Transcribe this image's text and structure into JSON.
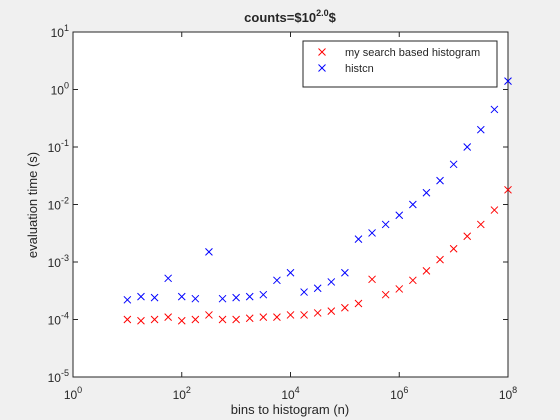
{
  "chart_data": {
    "type": "scatter",
    "title": "counts=$10",
    "title_superscript": "2.0",
    "title_suffix": "$",
    "xlabel": "bins to histogram (n)",
    "ylabel": "evaluation time (s)",
    "xscale": "log",
    "yscale": "log",
    "legend": "upper right",
    "xlim": [
      1,
      100000000
    ],
    "ylim": [
      1e-05,
      10
    ],
    "xticks": [
      {
        "value": 1,
        "label": "10",
        "exponent": "0"
      },
      {
        "value": 100,
        "label": "10",
        "exponent": "2"
      },
      {
        "value": 10000,
        "label": "10",
        "exponent": "4"
      },
      {
        "value": 1000000,
        "label": "10",
        "exponent": "6"
      },
      {
        "value": 100000000,
        "label": "10",
        "exponent": "8"
      }
    ],
    "yticks": [
      {
        "value": 1e-05,
        "label": "10",
        "exponent": "-5"
      },
      {
        "value": 0.0001,
        "label": "10",
        "exponent": "-4"
      },
      {
        "value": 0.001,
        "label": "10",
        "exponent": "-3"
      },
      {
        "value": 0.01,
        "label": "10",
        "exponent": "-2"
      },
      {
        "value": 0.1,
        "label": "10",
        "exponent": "-1"
      },
      {
        "value": 1,
        "label": "10",
        "exponent": "0"
      },
      {
        "value": 10,
        "label": "10",
        "exponent": "1"
      }
    ],
    "x": [
      10,
      17.78,
      31.62,
      56.23,
      100,
      177.8,
      316.2,
      562.3,
      1000,
      1778,
      3162,
      5623,
      10000,
      17783,
      31623,
      56234,
      100000,
      177828,
      316228,
      562341,
      1000000,
      1778279,
      3162278,
      5623413,
      10000000,
      17782794,
      31622777,
      56234133,
      100000000
    ],
    "series": [
      {
        "name": "my search based histogram",
        "color": "#ff0000",
        "values": [
          0.0001,
          9.5e-05,
          0.0001,
          0.00011,
          9.5e-05,
          0.0001,
          0.00012,
          0.0001,
          0.0001,
          0.000105,
          0.00011,
          0.00011,
          0.00012,
          0.00012,
          0.00013,
          0.00014,
          0.00016,
          0.00019,
          0.0005,
          0.00027,
          0.00034,
          0.00048,
          0.0007,
          0.0011,
          0.0017,
          0.0028,
          0.0045,
          0.008,
          0.018
        ]
      },
      {
        "name": "histcn",
        "color": "#0000ff",
        "values": [
          0.00022,
          0.00025,
          0.00024,
          0.00052,
          0.00025,
          0.00023,
          0.0015,
          0.00023,
          0.00024,
          0.00025,
          0.00027,
          0.00048,
          0.00065,
          0.0003,
          0.00035,
          0.00045,
          0.00065,
          0.0025,
          0.0032,
          0.0045,
          0.0065,
          0.01,
          0.016,
          0.026,
          0.05,
          0.1,
          0.2,
          0.45,
          1.4
        ]
      }
    ]
  }
}
